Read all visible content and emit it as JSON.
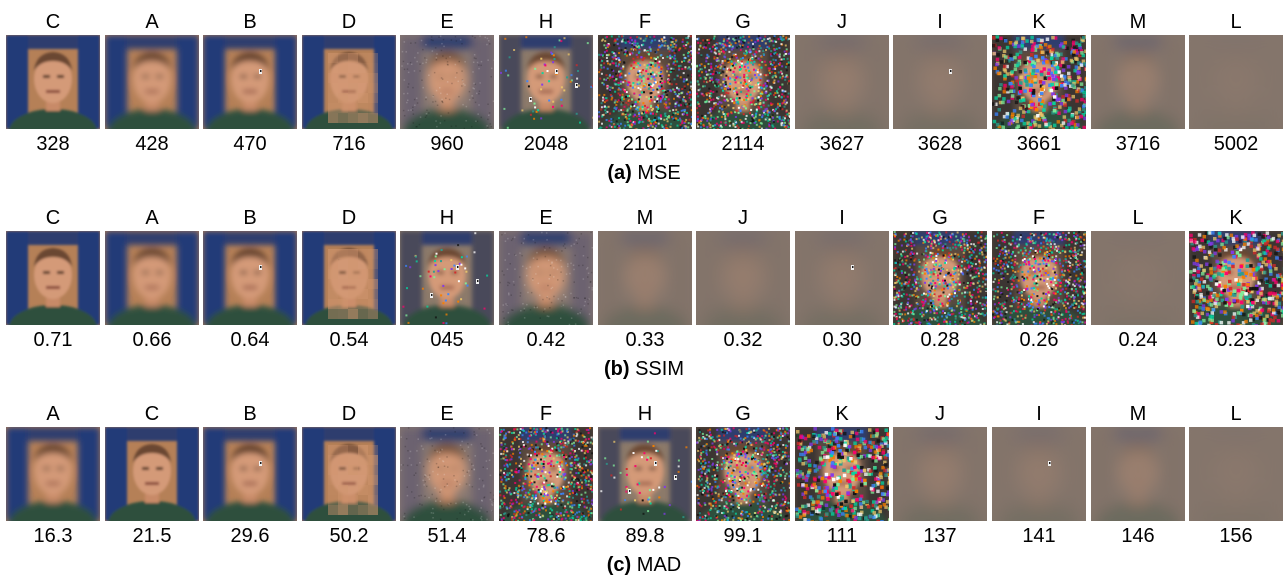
{
  "panels": [
    {
      "tag": "(a)",
      "metric": "MSE",
      "items": [
        {
          "letter": "C",
          "score": "328"
        },
        {
          "letter": "A",
          "score": "428"
        },
        {
          "letter": "B",
          "score": "470"
        },
        {
          "letter": "D",
          "score": "716"
        },
        {
          "letter": "E",
          "score": "960"
        },
        {
          "letter": "H",
          "score": "2048"
        },
        {
          "letter": "F",
          "score": "2101"
        },
        {
          "letter": "G",
          "score": "2114"
        },
        {
          "letter": "J",
          "score": "3627"
        },
        {
          "letter": "I",
          "score": "3628"
        },
        {
          "letter": "K",
          "score": "3661"
        },
        {
          "letter": "M",
          "score": "3716"
        },
        {
          "letter": "L",
          "score": "5002"
        }
      ]
    },
    {
      "tag": "(b)",
      "metric": "SSIM",
      "items": [
        {
          "letter": "C",
          "score": "0.71"
        },
        {
          "letter": "A",
          "score": "0.66"
        },
        {
          "letter": "B",
          "score": "0.64"
        },
        {
          "letter": "D",
          "score": "0.54"
        },
        {
          "letter": "H",
          "score": "045"
        },
        {
          "letter": "E",
          "score": "0.42"
        },
        {
          "letter": "M",
          "score": "0.33"
        },
        {
          "letter": "J",
          "score": "0.32"
        },
        {
          "letter": "I",
          "score": "0.30"
        },
        {
          "letter": "G",
          "score": "0.28"
        },
        {
          "letter": "F",
          "score": "0.26"
        },
        {
          "letter": "L",
          "score": "0.24"
        },
        {
          "letter": "K",
          "score": "0.23"
        }
      ]
    },
    {
      "tag": "(c)",
      "metric": "MAD",
      "items": [
        {
          "letter": "A",
          "score": "16.3"
        },
        {
          "letter": "C",
          "score": "21.5"
        },
        {
          "letter": "B",
          "score": "29.6"
        },
        {
          "letter": "D",
          "score": "50.2"
        },
        {
          "letter": "E",
          "score": "51.4"
        },
        {
          "letter": "F",
          "score": "78.6"
        },
        {
          "letter": "H",
          "score": "89.8"
        },
        {
          "letter": "G",
          "score": "99.1"
        },
        {
          "letter": "K",
          "score": "111"
        },
        {
          "letter": "J",
          "score": "137"
        },
        {
          "letter": "I",
          "score": "141"
        },
        {
          "letter": "M",
          "score": "146"
        },
        {
          "letter": "L",
          "score": "156"
        }
      ]
    }
  ]
}
